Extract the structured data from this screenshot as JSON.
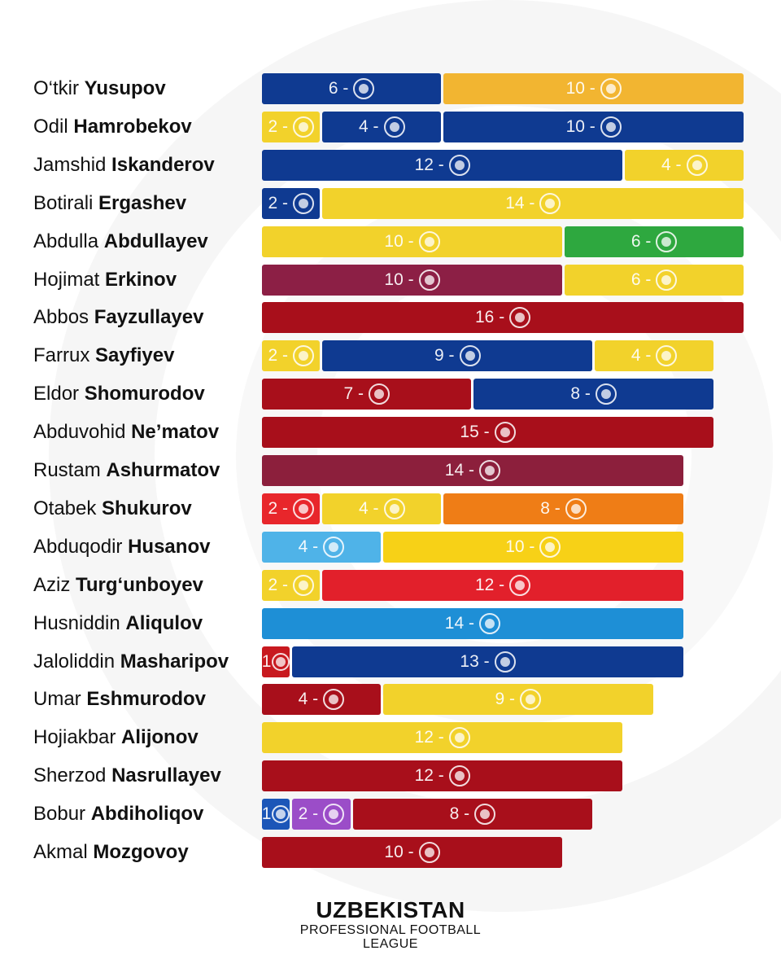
{
  "footer": {
    "logo_title": "UZBEKISTAN",
    "logo_subtitle_1": "PROFESSIONAL FOOTBALL",
    "logo_subtitle_2": "LEAGUE"
  },
  "chart_data": {
    "type": "bar",
    "stacked": true,
    "orientation": "horizontal",
    "legend": "none",
    "players": [
      {
        "first": "O‘tkir",
        "last": "Yusupov",
        "segments": [
          {
            "value": 6,
            "label": "6 -",
            "color": "#0f3a91",
            "badge": "club-crest"
          },
          {
            "value": 10,
            "label": "10 -",
            "color": "#f2b531",
            "badge": "club-crest"
          }
        ]
      },
      {
        "first": "Odil",
        "last": "Hamrobekov",
        "segments": [
          {
            "value": 2,
            "label": "2 -",
            "color": "#f2d22b",
            "badge": "club-crest"
          },
          {
            "value": 4,
            "label": "4 -",
            "color": "#0f3a91",
            "badge": "club-crest"
          },
          {
            "value": 10,
            "label": "10 -",
            "color": "#0f3a91",
            "badge": "club-crest"
          }
        ]
      },
      {
        "first": "Jamshid",
        "last": "Iskanderov",
        "segments": [
          {
            "value": 12,
            "label": "12 -",
            "color": "#0f3a91",
            "badge": "club-crest"
          },
          {
            "value": 4,
            "label": "4 -",
            "color": "#f2d22b",
            "badge": "club-crest"
          }
        ]
      },
      {
        "first": "Botirali",
        "last": "Ergashev",
        "segments": [
          {
            "value": 2,
            "label": "2 -",
            "color": "#0f3a91",
            "badge": "club-crest"
          },
          {
            "value": 14,
            "label": "14 -",
            "color": "#f2d22b",
            "badge": "club-crest"
          }
        ]
      },
      {
        "first": "Abdulla",
        "last": "Abdullayev",
        "segments": [
          {
            "value": 10,
            "label": "10 -",
            "color": "#f2d22b",
            "badge": "club-crest"
          },
          {
            "value": 6,
            "label": "6 -",
            "color": "#2ea83f",
            "badge": "club-crest"
          }
        ]
      },
      {
        "first": "Hojimat",
        "last": "Erkinov",
        "segments": [
          {
            "value": 10,
            "label": "10 -",
            "color": "#8c1f45",
            "badge": "club-crest"
          },
          {
            "value": 6,
            "label": "6 -",
            "color": "#f2d22b",
            "badge": "club-crest"
          }
        ]
      },
      {
        "first": "Abbos",
        "last": "Fayzullayev",
        "segments": [
          {
            "value": 16,
            "label": "16 -",
            "color": "#a80f1b",
            "badge": "club-crest"
          }
        ]
      },
      {
        "first": "Farrux",
        "last": "Sayfiyev",
        "segments": [
          {
            "value": 2,
            "label": "2 -",
            "color": "#f2d22b",
            "badge": "club-crest"
          },
          {
            "value": 9,
            "label": "9 -",
            "color": "#0f3a91",
            "badge": "club-crest"
          },
          {
            "value": 4,
            "label": "4 -",
            "color": "#f2d22b",
            "badge": "club-crest"
          }
        ]
      },
      {
        "first": "Eldor",
        "last": "Shomurodov",
        "segments": [
          {
            "value": 7,
            "label": "7 -",
            "color": "#a80f1b",
            "badge": "club-crest"
          },
          {
            "value": 8,
            "label": "8 -",
            "color": "#0f3a91",
            "badge": "club-crest"
          }
        ]
      },
      {
        "first": "Abduvohid",
        "last": "Ne’matov",
        "segments": [
          {
            "value": 15,
            "label": "15 -",
            "color": "#a80f1b",
            "badge": "club-crest"
          }
        ]
      },
      {
        "first": "Rustam",
        "last": "Ashurmatov",
        "segments": [
          {
            "value": 14,
            "label": "14 -",
            "color": "#8c1f3c",
            "badge": "club-crest"
          }
        ]
      },
      {
        "first": "Otabek",
        "last": "Shukurov",
        "segments": [
          {
            "value": 2,
            "label": "2 -",
            "color": "#e8262b",
            "badge": "club-crest"
          },
          {
            "value": 4,
            "label": "4 -",
            "color": "#f2d22b",
            "badge": "club-crest"
          },
          {
            "value": 8,
            "label": "8 -",
            "color": "#ef7d16",
            "badge": "club-crest"
          }
        ]
      },
      {
        "first": "Abduqodir",
        "last": "Husanov",
        "segments": [
          {
            "value": 4,
            "label": "4 -",
            "color": "#4fb3e8",
            "badge": "club-crest"
          },
          {
            "value": 10,
            "label": "10 -",
            "color": "#f7d117",
            "badge": "club-crest"
          }
        ]
      },
      {
        "first": "Aziz",
        "last": "Turg‘unboyev",
        "segments": [
          {
            "value": 2,
            "label": "2 -",
            "color": "#f2d22b",
            "badge": "club-crest"
          },
          {
            "value": 12,
            "label": "12 -",
            "color": "#e2202b",
            "badge": "club-crest"
          }
        ]
      },
      {
        "first": "Husniddin",
        "last": "Aliqulov",
        "segments": [
          {
            "value": 14,
            "label": "14 -",
            "color": "#1e8fd6",
            "badge": "club-crest"
          }
        ]
      },
      {
        "first": "Jaloliddin",
        "last": "Masharipov",
        "segments": [
          {
            "value": 1,
            "label": "1",
            "color": "#c8191f",
            "badge": "club-crest"
          },
          {
            "value": 13,
            "label": "13 -",
            "color": "#0f3a91",
            "badge": "club-crest"
          }
        ]
      },
      {
        "first": "Umar",
        "last": "Eshmurodov",
        "segments": [
          {
            "value": 4,
            "label": "4 -",
            "color": "#a80f1b",
            "badge": "club-crest"
          },
          {
            "value": 9,
            "label": "9 -",
            "color": "#f2d22b",
            "badge": "club-crest"
          }
        ]
      },
      {
        "first": "Hojiakbar",
        "last": "Alijonov",
        "segments": [
          {
            "value": 12,
            "label": "12 -",
            "color": "#f2d22b",
            "badge": "club-crest"
          }
        ]
      },
      {
        "first": "Sherzod",
        "last": "Nasrullayev",
        "segments": [
          {
            "value": 12,
            "label": "12 -",
            "color": "#a80f1b",
            "badge": "club-crest"
          }
        ]
      },
      {
        "first": "Bobur",
        "last": "Abdiholiqov",
        "segments": [
          {
            "value": 1,
            "label": "1",
            "color": "#1b56b8",
            "badge": "club-crest"
          },
          {
            "value": 2,
            "label": "2 -",
            "color": "#9b4dc8",
            "badge": "club-crest"
          },
          {
            "value": 8,
            "label": "8 -",
            "color": "#a80f1b",
            "badge": "club-crest"
          }
        ]
      },
      {
        "first": "Akmal",
        "last": "Mozgovoy",
        "segments": [
          {
            "value": 10,
            "label": "10 -",
            "color": "#a80f1b",
            "badge": "club-crest"
          }
        ]
      }
    ]
  }
}
